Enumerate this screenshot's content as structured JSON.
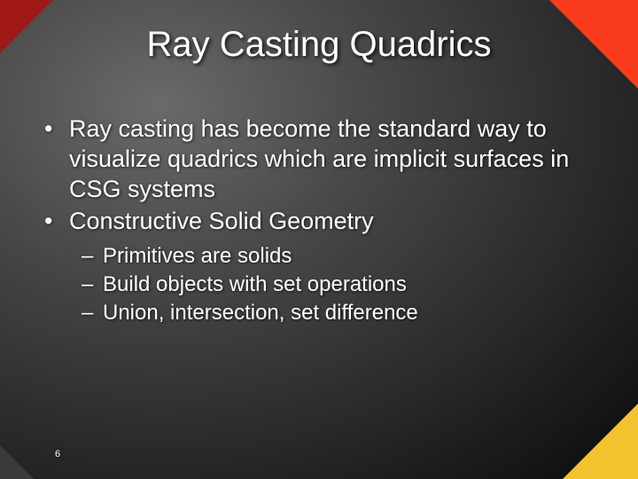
{
  "slide": {
    "title": "Ray Casting Quadrics",
    "title_fontsize": 40,
    "title_color": "#ffffff",
    "bullets_lvl1": [
      "Ray casting has become the standard way to visualize quadrics which are implicit surfaces in CSG systems",
      "Constructive Solid Geometry"
    ],
    "bullets_lvl2": [
      "Primitives are solids",
      "Build objects with set operations",
      "Union, intersection, set difference"
    ],
    "lvl1_fontsize": 27,
    "lvl1_lineheight": 34,
    "lvl2_fontsize": 24,
    "lvl2_lineheight": 30,
    "page_number": "6",
    "page_number_fontsize": 11,
    "background_gradient_center": "#6a6a6a",
    "background_gradient_edge": "#0a0a0a",
    "corners": {
      "tl": {
        "size": 60,
        "color": "#a01818"
      },
      "tr": {
        "size": 100,
        "color": "#fa3c1e"
      },
      "bl": {
        "size": 38,
        "color": "#3a3a3a"
      },
      "br": {
        "size": 85,
        "color": "#f4c430"
      }
    }
  }
}
